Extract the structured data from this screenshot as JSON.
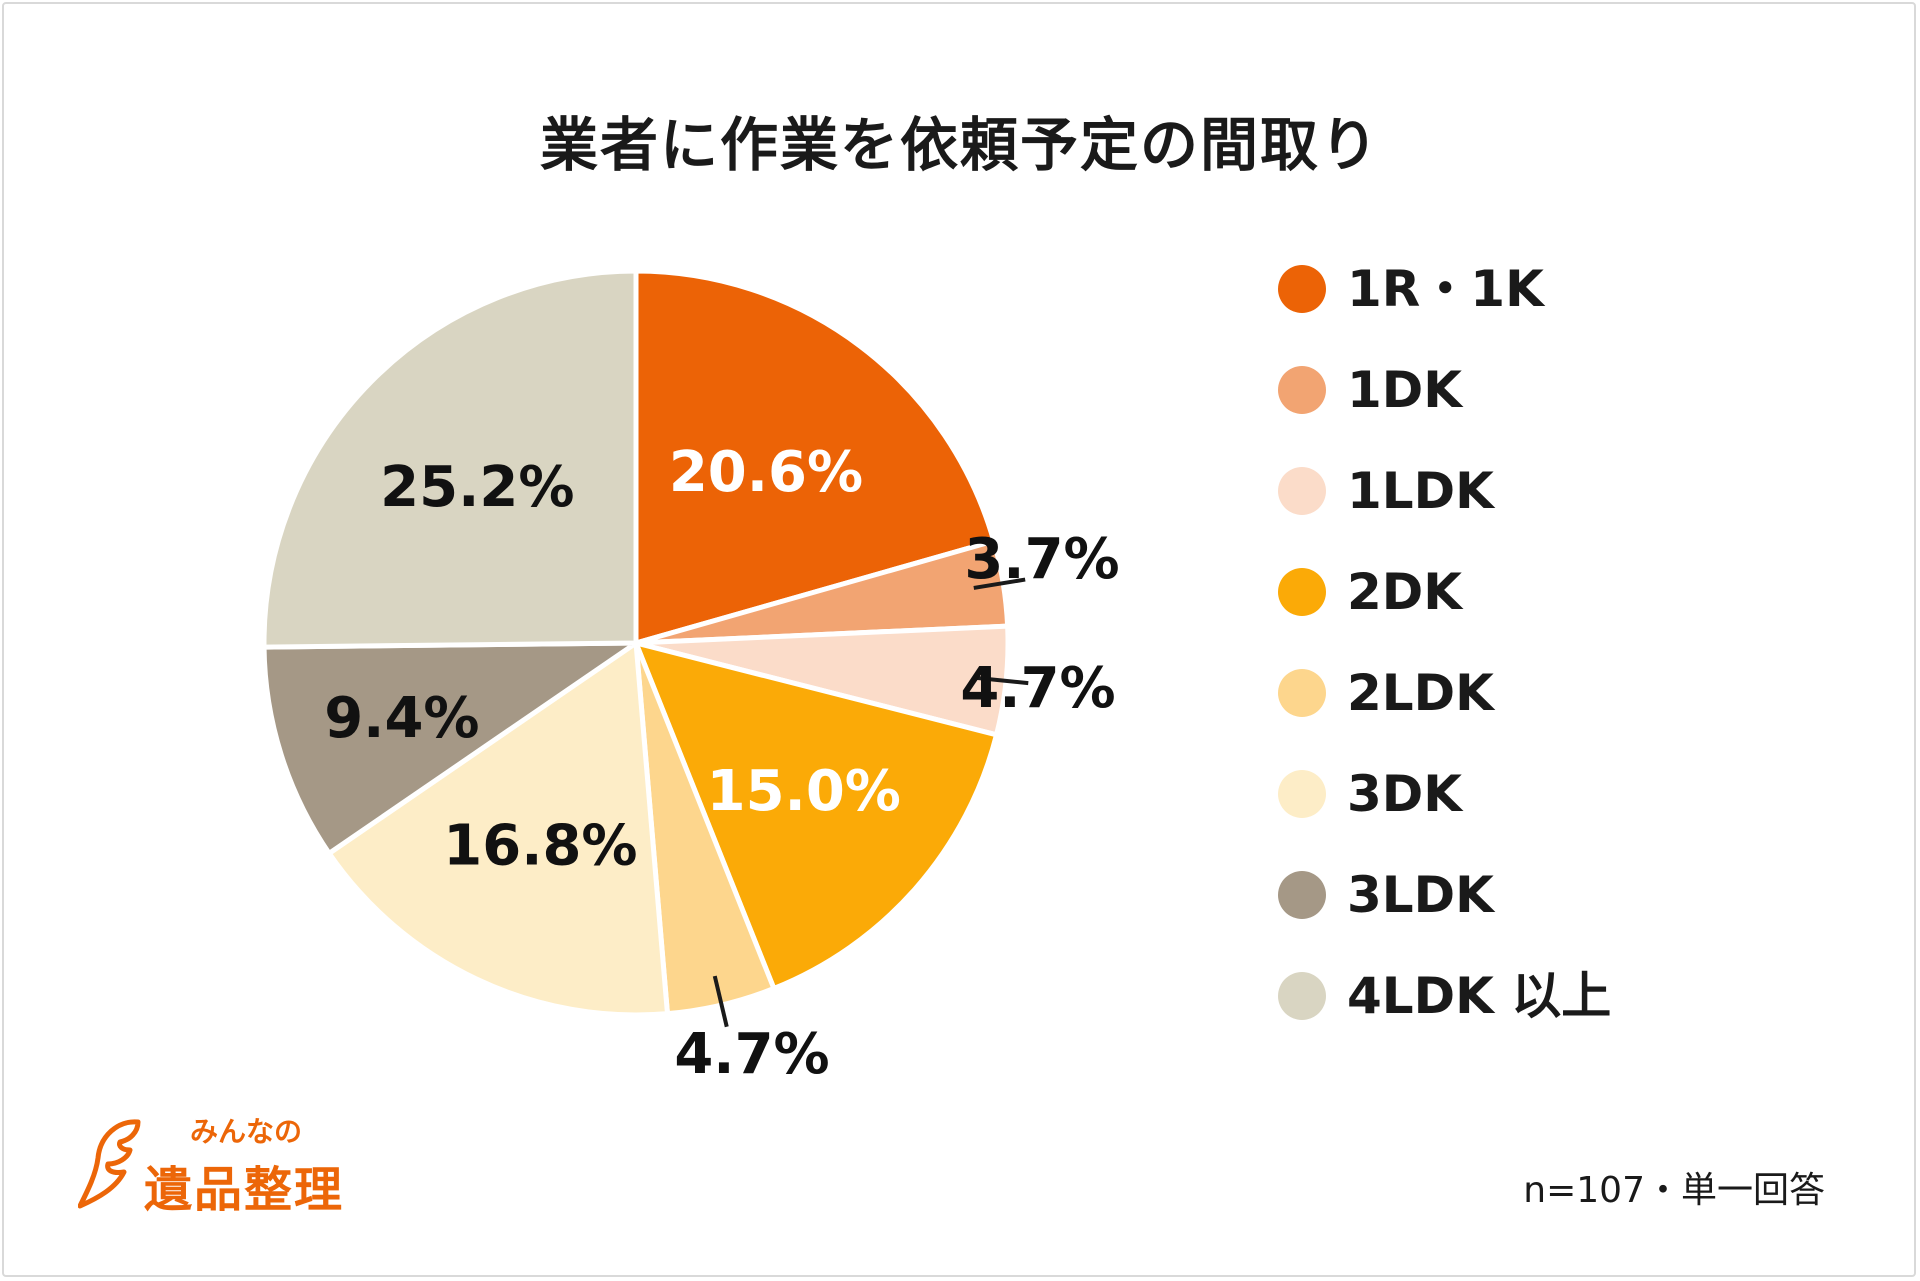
{
  "title": "業者に作業を依頼予定の間取り",
  "footnote": "n=107・単一回答",
  "logo": {
    "small": "みんなの",
    "big": "遺品整理"
  },
  "chart_data": {
    "type": "pie",
    "title": "業者に作業を依頼予定の間取り",
    "unit": "%",
    "slices": [
      {
        "label": "1R・1K",
        "value": 20.6,
        "display": "20.6%",
        "color": "#ec6306",
        "label_color": "#ffffff"
      },
      {
        "label": "1DK",
        "value": 3.7,
        "display": "3.7%",
        "color": "#f2a472",
        "label_color": "#111111"
      },
      {
        "label": "1LDK",
        "value": 4.7,
        "display": "4.7%",
        "color": "#fbdcc9",
        "label_color": "#111111"
      },
      {
        "label": "2DK",
        "value": 15.0,
        "display": "15.0%",
        "color": "#fbaa07",
        "label_color": "#ffffff"
      },
      {
        "label": "2LDK",
        "value": 4.7,
        "display": "4.7%",
        "color": "#fdd68d",
        "label_color": "#111111"
      },
      {
        "label": "3DK",
        "value": 16.8,
        "display": "16.8%",
        "color": "#fdedc7",
        "label_color": "#111111"
      },
      {
        "label": "3LDK",
        "value": 9.4,
        "display": "9.4%",
        "color": "#a59886",
        "label_color": "#111111"
      },
      {
        "label": "4LDK 以上",
        "value": 25.2,
        "display": "25.2%",
        "color": "#d9d5c2",
        "label_color": "#111111"
      }
    ]
  }
}
